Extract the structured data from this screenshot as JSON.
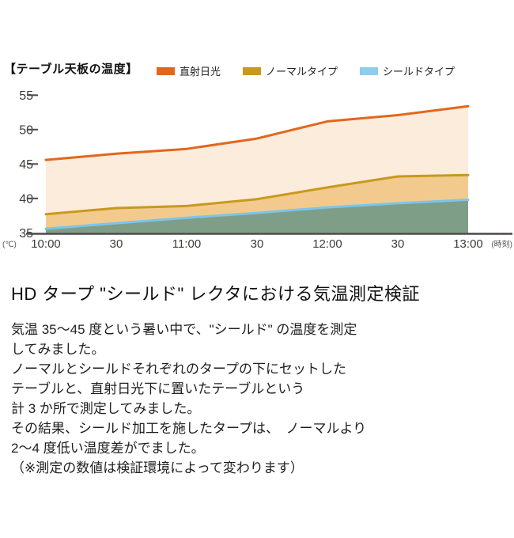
{
  "chart": {
    "title": "【テーブル天板の温度】"
  },
  "chart_data": {
    "type": "area",
    "title": "テーブル天板の温度",
    "x": [
      "10:00",
      "30",
      "11:00",
      "30",
      "12:00",
      "30",
      "13:00"
    ],
    "xlabel": "時刻",
    "ylabel": "℃",
    "x_unit_label": "(時刻)",
    "y_unit_label": "(℃)",
    "ylim": [
      35,
      55
    ],
    "yticks": [
      35,
      40,
      45,
      50,
      55
    ],
    "grid": false,
    "legend_position": "top",
    "series": [
      {
        "name": "直射日光",
        "line_color": "#e2671e",
        "fill_color": "#fcecdb",
        "swatch_color": "#e2671e",
        "values": [
          45.6,
          46.5,
          47.2,
          48.7,
          51.2,
          52.1,
          53.4
        ]
      },
      {
        "name": "ノーマルタイプ",
        "line_color": "#c8991c",
        "fill_color": "#f2ca8e",
        "swatch_color": "#c8991c",
        "values": [
          37.7,
          38.6,
          38.9,
          39.9,
          41.6,
          43.2,
          43.4
        ]
      },
      {
        "name": "シールドタイプ",
        "line_color": "#7cc5e8",
        "fill_color": "#7f9e88",
        "swatch_color": "#8ecdee",
        "values": [
          35.6,
          36.4,
          37.2,
          37.9,
          38.7,
          39.3,
          39.8
        ]
      }
    ],
    "axis_color": "#4c4948"
  },
  "article": {
    "heading": "HD タープ \"シールド\" レクタにおける気温測定検証",
    "lines": [
      "気温 35〜45 度という暑い中で、\"シールド\" の温度を測定",
      "してみました。",
      "ノーマルとシールドそれぞれのタープの下にセットした",
      "テーブルと、直射日光下に置いたテーブルという",
      "計 3 か所で測定してみました。",
      "その結果、シールド加工を施したタープは、　ノーマルより",
      "2〜4 度低い温度差がでました。",
      "（※測定の数値は検証環境によって変わります）"
    ]
  }
}
